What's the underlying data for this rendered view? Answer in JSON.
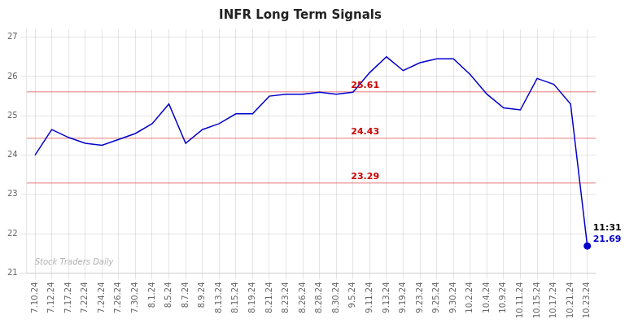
{
  "chart_data": {
    "type": "line",
    "title": "INFR Long Term Signals",
    "categories": [
      "7.10.24",
      "7.12.24",
      "7.17.24",
      "7.22.24",
      "7.24.24",
      "7.26.24",
      "7.30.24",
      "8.1.24",
      "8.5.24",
      "8.7.24",
      "8.9.24",
      "8.13.24",
      "8.15.24",
      "8.19.24",
      "8.21.24",
      "8.23.24",
      "8.26.24",
      "8.28.24",
      "8.30.24",
      "9.5.24",
      "9.11.24",
      "9.13.24",
      "9.19.24",
      "9.23.24",
      "9.25.24",
      "9.30.24",
      "10.2.24",
      "10.4.24",
      "10.9.24",
      "10.11.24",
      "10.15.24",
      "10.17.24",
      "10.21.24",
      "10.23.24"
    ],
    "values": [
      24.0,
      24.65,
      24.45,
      24.3,
      24.25,
      24.4,
      24.55,
      24.8,
      25.3,
      24.3,
      24.65,
      24.8,
      25.05,
      25.05,
      25.5,
      25.55,
      25.55,
      25.6,
      25.55,
      25.6,
      26.1,
      26.5,
      26.15,
      26.35,
      26.45,
      26.45,
      26.05,
      25.55,
      25.2,
      25.15,
      25.95,
      25.8,
      25.3,
      21.69
    ],
    "color": "#0000cc",
    "marker": "none",
    "hlines": [
      {
        "value": 25.61,
        "color": "#cc0000"
      },
      {
        "value": 24.43,
        "color": "#cc0000"
      },
      {
        "value": 23.29,
        "color": "#cc0000"
      }
    ],
    "annotations": [
      {
        "text": "11:31",
        "x": "10.23.24",
        "color": "#000000"
      },
      {
        "text": "21.69",
        "x": "10.23.24",
        "y": 21.69,
        "color": "#0000cc",
        "marker": "circle"
      },
      {
        "text": "Stock Traders Daily",
        "color": "#b0b0b0"
      }
    ],
    "ylim": [
      21,
      27.2
    ],
    "yticks": [
      21,
      22,
      23,
      24,
      25,
      26,
      27
    ],
    "grid": true
  }
}
